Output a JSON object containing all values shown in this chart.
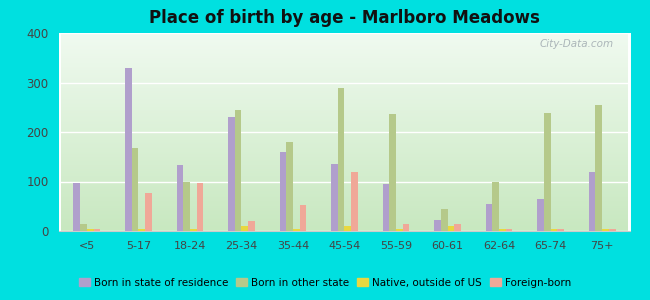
{
  "title": "Place of birth by age - Marlboro Meadows",
  "categories": [
    "<5",
    "5-17",
    "18-24",
    "25-34",
    "35-44",
    "45-54",
    "55-59",
    "60-61",
    "62-64",
    "65-74",
    "75+"
  ],
  "series": {
    "Born in state of residence": [
      97,
      330,
      133,
      230,
      160,
      135,
      95,
      22,
      55,
      65,
      120
    ],
    "Born in other state": [
      15,
      168,
      98,
      245,
      180,
      288,
      237,
      45,
      98,
      238,
      255
    ],
    "Native, outside of US": [
      5,
      5,
      5,
      10,
      5,
      10,
      5,
      10,
      5,
      5,
      5
    ],
    "Foreign-born": [
      5,
      76,
      97,
      20,
      52,
      120,
      15,
      15,
      5,
      5,
      5
    ]
  },
  "colors": {
    "Born in state of residence": "#b09fcc",
    "Born in other state": "#b5c98a",
    "Native, outside of US": "#e8d840",
    "Foreign-born": "#f0a898"
  },
  "ylim": [
    0,
    400
  ],
  "yticks": [
    0,
    100,
    200,
    300,
    400
  ],
  "background_color": "#00e0e0",
  "bar_width": 0.13,
  "watermark": "City-Data.com"
}
